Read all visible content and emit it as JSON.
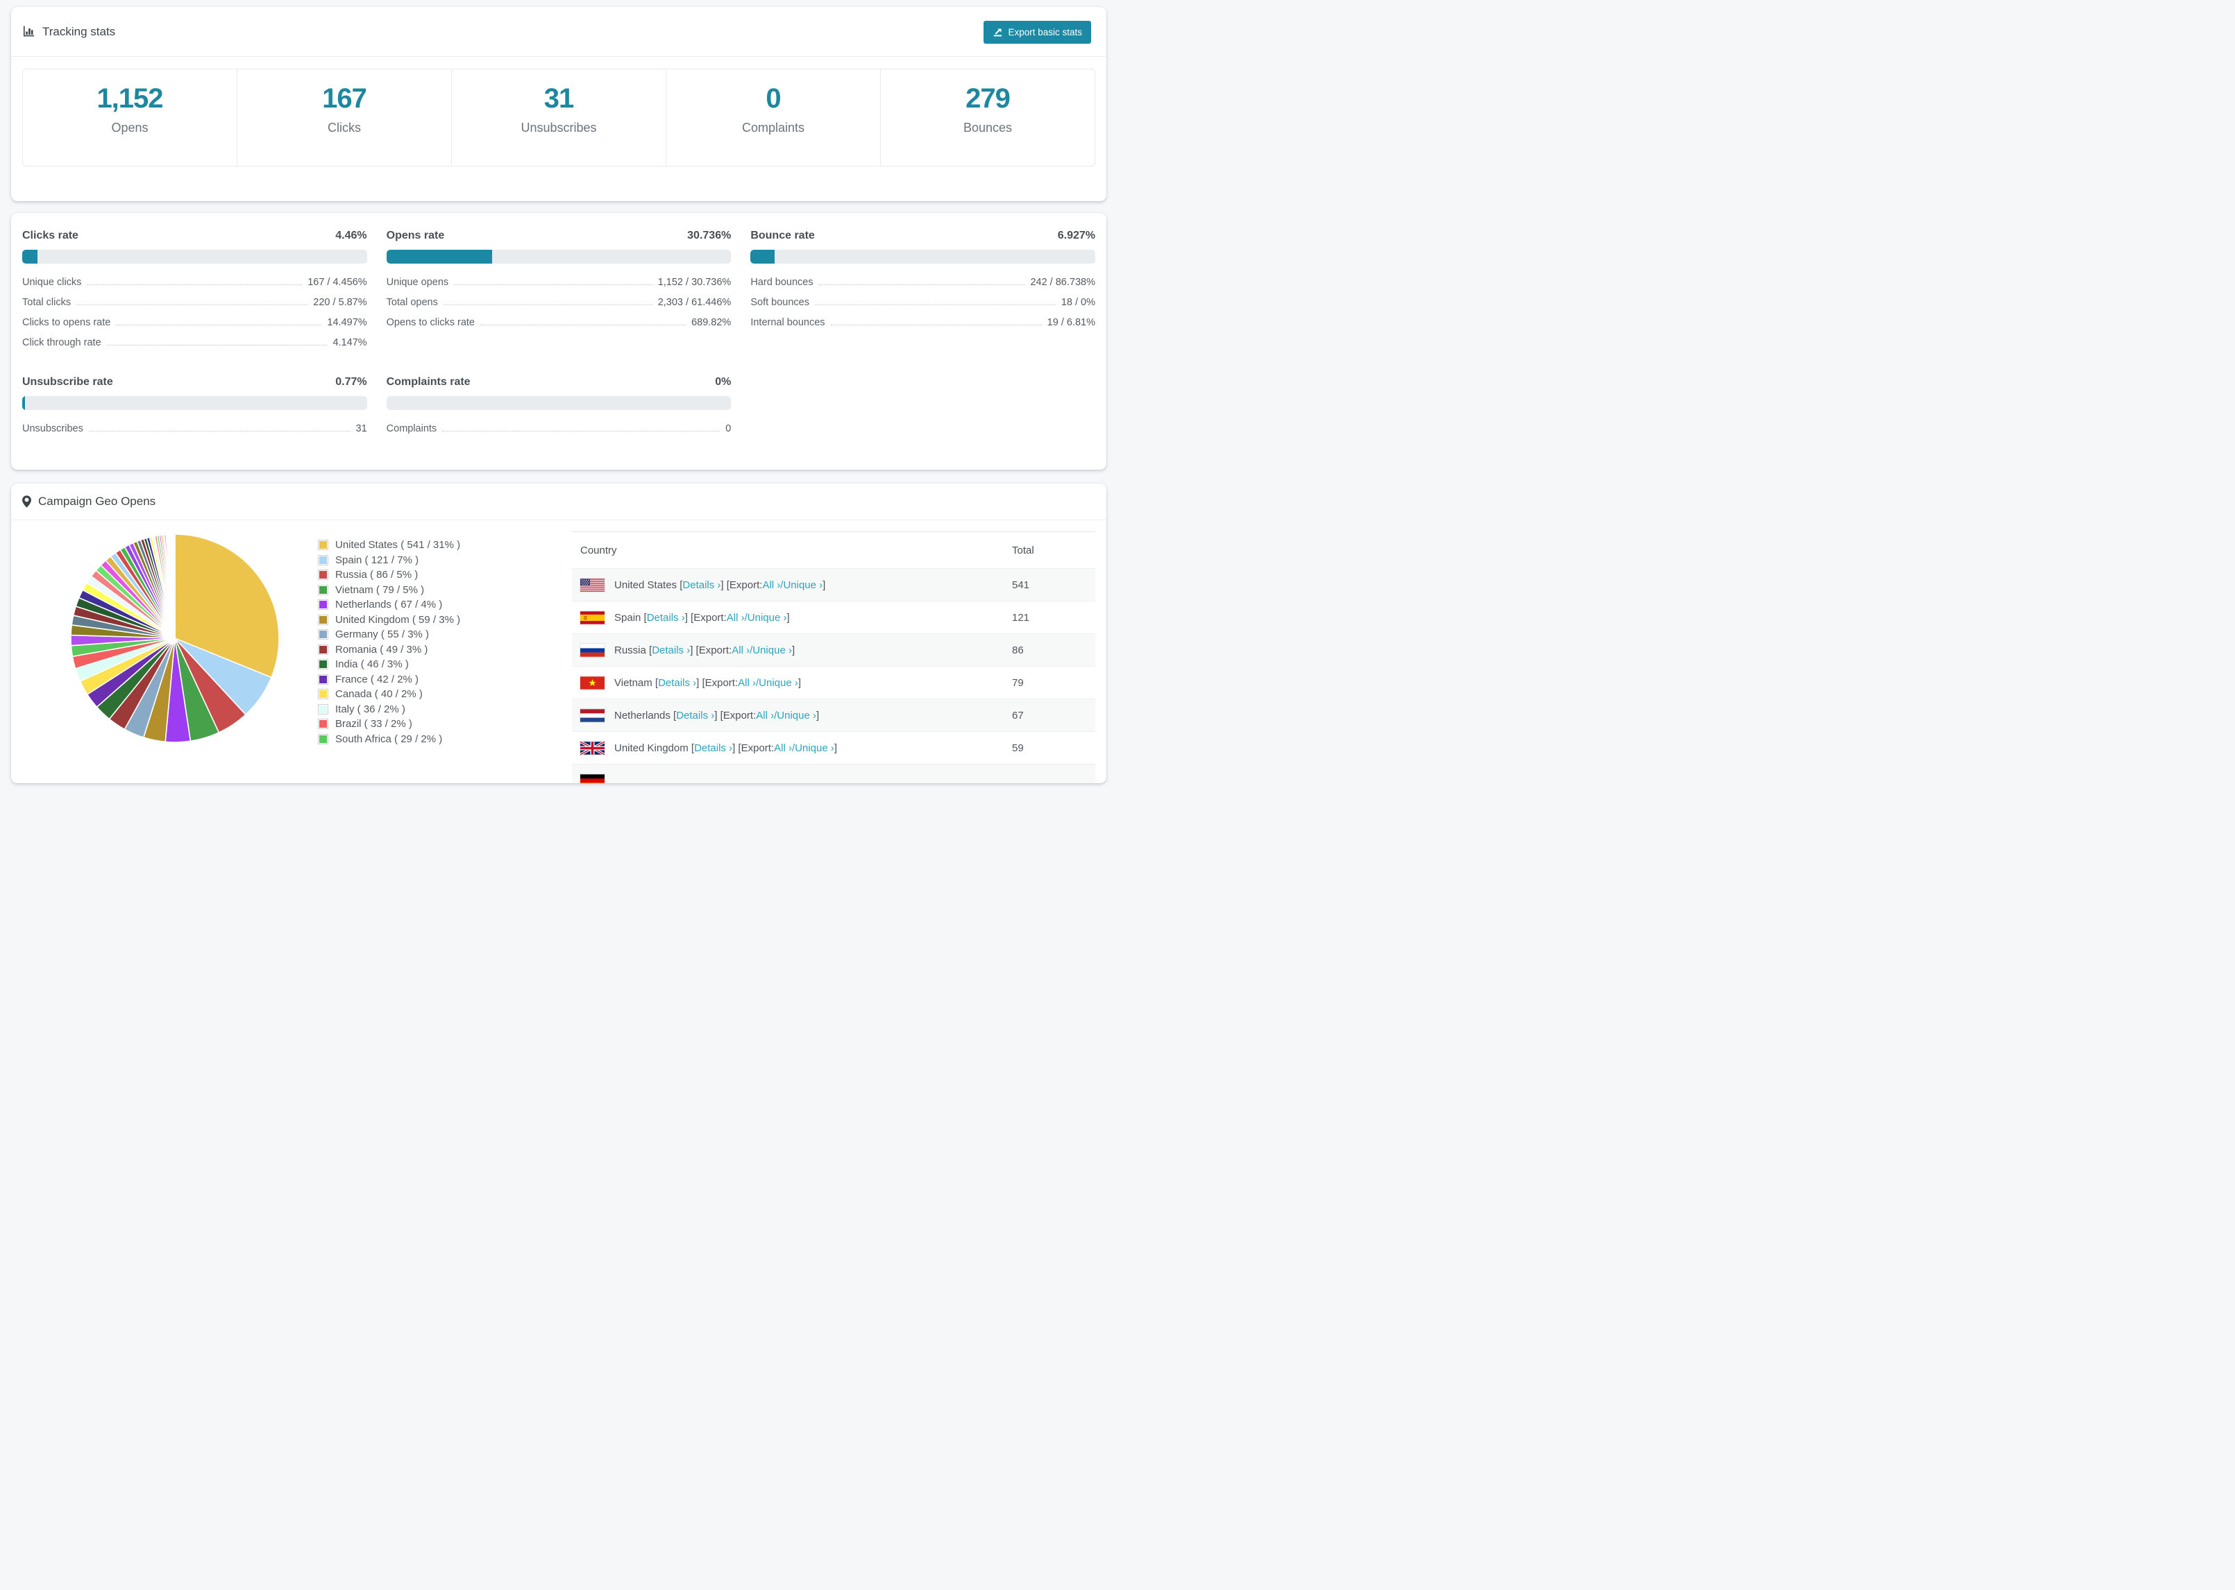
{
  "tracking": {
    "title": "Tracking stats",
    "export_button": "Export basic stats",
    "stats": [
      {
        "value": "1,152",
        "label": "Opens"
      },
      {
        "value": "167",
        "label": "Clicks"
      },
      {
        "value": "31",
        "label": "Unsubscribes"
      },
      {
        "value": "0",
        "label": "Complaints"
      },
      {
        "value": "279",
        "label": "Bounces"
      }
    ]
  },
  "rates": {
    "panels": [
      {
        "title": "Clicks rate",
        "value": "4.46%",
        "pct": 4.46,
        "rows": [
          [
            "Unique clicks",
            "167 / 4.456%"
          ],
          [
            "Total clicks",
            "220 / 5.87%"
          ],
          [
            "Clicks to opens rate",
            "14.497%"
          ],
          [
            "Click through rate",
            "4.147%"
          ]
        ]
      },
      {
        "title": "Opens rate",
        "value": "30.736%",
        "pct": 30.736,
        "rows": [
          [
            "Unique opens",
            "1,152 / 30.736%"
          ],
          [
            "Total opens",
            "2,303 / 61.446%"
          ],
          [
            "Opens to clicks rate",
            "689.82%"
          ]
        ]
      },
      {
        "title": "Bounce rate",
        "value": "6.927%",
        "pct": 6.927,
        "rows": [
          [
            "Hard bounces",
            "242 / 86.738%"
          ],
          [
            "Soft bounces",
            "18 / 0%"
          ],
          [
            "Internal bounces",
            "19 / 6.81%"
          ]
        ]
      },
      {
        "title": "Unsubscribe rate",
        "value": "0.77%",
        "pct": 0.77,
        "rows": [
          [
            "Unsubscribes",
            "31"
          ]
        ]
      },
      {
        "title": "Complaints rate",
        "value": "0%",
        "pct": 0,
        "rows": [
          [
            "Complaints",
            "0"
          ]
        ]
      }
    ]
  },
  "geo": {
    "title": "Campaign Geo Opens",
    "chart_data": {
      "type": "pie",
      "title": "Campaign Geo Opens",
      "legend_position": "right",
      "start_angle_deg": -90,
      "direction": "clockwise",
      "series": [
        {
          "name": "United States",
          "value": 541,
          "pct": "31%",
          "color": "#ecc34b",
          "flag": "us"
        },
        {
          "name": "Spain",
          "value": 121,
          "pct": "7%",
          "color": "#abd5f5",
          "flag": "es"
        },
        {
          "name": "Russia",
          "value": 86,
          "pct": "5%",
          "color": "#c94c4c",
          "flag": "ru"
        },
        {
          "name": "Vietnam",
          "value": 79,
          "pct": "5%",
          "color": "#47a14b",
          "flag": "vn"
        },
        {
          "name": "Netherlands",
          "value": 67,
          "pct": "4%",
          "color": "#9c3df2",
          "flag": "nl"
        },
        {
          "name": "United Kingdom",
          "value": 59,
          "pct": "3%",
          "color": "#b3902c",
          "flag": "gb"
        },
        {
          "name": "Germany",
          "value": 55,
          "pct": "3%",
          "color": "#88aac6",
          "flag": "de"
        },
        {
          "name": "Romania",
          "value": 49,
          "pct": "3%",
          "color": "#9c3a3a",
          "flag": "ro"
        },
        {
          "name": "India",
          "value": 46,
          "pct": "3%",
          "color": "#2d7034",
          "flag": "in"
        },
        {
          "name": "France",
          "value": 42,
          "pct": "2%",
          "color": "#6a2fb0",
          "flag": "fr"
        },
        {
          "name": "Canada",
          "value": 40,
          "pct": "2%",
          "color": "#fde14e",
          "flag": "ca"
        },
        {
          "name": "Italy",
          "value": 36,
          "pct": "2%",
          "color": "#dcfdf5",
          "flag": "it"
        },
        {
          "name": "Brazil",
          "value": 33,
          "pct": "2%",
          "color": "#f25f5f",
          "flag": "br"
        },
        {
          "name": "South Africa",
          "value": 29,
          "pct": "2%",
          "color": "#59c95c",
          "flag": "za"
        }
      ],
      "other_slices": [
        28,
        27,
        26,
        25,
        24,
        23,
        22,
        21,
        20,
        19,
        18,
        17,
        16,
        15,
        14,
        13,
        12,
        11,
        10,
        9,
        8,
        8,
        7,
        7,
        6,
        6,
        5,
        5,
        4,
        4,
        3,
        3,
        3,
        2,
        2,
        2,
        2,
        1,
        1,
        1,
        1,
        1,
        1,
        1
      ],
      "other_palette": [
        "#b04ef0",
        "#8a7d20",
        "#5f7d8c",
        "#8c3434",
        "#245c30",
        "#3f2f96",
        "#ffff55",
        "#eef8ff",
        "#f28282",
        "#6ee06e",
        "#e455e4",
        "#e0b347",
        "#a9d3f2",
        "#d14b4b",
        "#48b648",
        "#9146e8"
      ]
    },
    "table": {
      "headers": {
        "country": "Country",
        "total": "Total"
      },
      "link_details": "Details ›",
      "export_label": "Export:",
      "link_all": "All ›",
      "link_unique": "Unique ›",
      "rows": [
        {
          "flag": "us",
          "country": "United States",
          "total": "541"
        },
        {
          "flag": "es",
          "country": "Spain",
          "total": "121"
        },
        {
          "flag": "ru",
          "country": "Russia",
          "total": "86"
        },
        {
          "flag": "vn",
          "country": "Vietnam",
          "total": "79"
        },
        {
          "flag": "nl",
          "country": "Netherlands",
          "total": "67"
        },
        {
          "flag": "gb",
          "country": "United Kingdom",
          "total": "59"
        },
        {
          "flag": "de",
          "country": "",
          "total": ""
        }
      ]
    }
  }
}
